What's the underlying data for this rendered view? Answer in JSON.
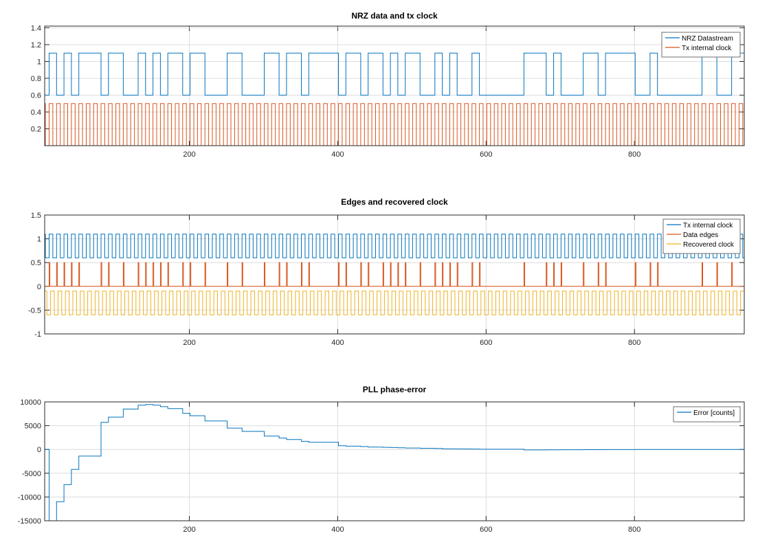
{
  "colors": {
    "blue": "#0072BD",
    "orange": "#D95319",
    "yellow": "#EDB120",
    "grid": "#dcdcdc",
    "axis": "#262626"
  },
  "chart_data": [
    {
      "type": "line",
      "title": "NRZ data and tx clock",
      "xlim": [
        5,
        948
      ],
      "ylim": [
        0,
        1.42
      ],
      "grid": true,
      "legend_placement": "top-right",
      "xticks": [
        200,
        400,
        600,
        800
      ],
      "yticks": [
        0.2,
        0.4,
        0.6,
        0.8,
        1,
        1.2,
        1.4
      ],
      "series": [
        {
          "name": "NRZ Datastream",
          "kind": "nrz",
          "color": "#0072BD",
          "bit_period": 10,
          "low": 0.6,
          "high": 1.1,
          "bits": [
            0,
            1,
            0,
            1,
            0,
            1,
            1,
            1,
            0,
            1,
            1,
            0,
            0,
            1,
            0,
            1,
            0,
            1,
            1,
            0,
            1,
            1,
            0,
            0,
            0,
            1,
            1,
            0,
            0,
            0,
            1,
            1,
            0,
            1,
            1,
            0,
            1,
            1,
            1,
            1,
            0,
            1,
            1,
            0,
            1,
            1,
            0,
            1,
            0,
            1,
            1,
            0,
            0,
            1,
            0,
            1,
            0,
            0,
            1,
            0,
            0,
            0,
            0,
            0,
            0,
            1,
            1,
            1,
            0,
            1,
            0,
            0,
            0,
            1,
            1,
            0,
            1,
            1,
            1,
            1,
            0,
            0,
            1,
            0,
            0,
            0,
            0,
            0,
            0,
            1,
            1,
            0,
            0,
            1,
            1
          ]
        },
        {
          "name": "Tx internal clock",
          "kind": "clock",
          "color": "#D95319",
          "period": 10,
          "low": 0,
          "high": 0.5
        }
      ]
    },
    {
      "type": "line",
      "title": "Edges and recovered clock",
      "xlim": [
        5,
        948
      ],
      "ylim": [
        -1,
        1.5
      ],
      "grid": true,
      "legend_placement": "top-right",
      "xticks": [
        200,
        400,
        600,
        800
      ],
      "yticks": [
        -1,
        -0.5,
        0,
        0.5,
        1,
        1.5
      ],
      "series": [
        {
          "name": "Tx internal clock",
          "kind": "clock",
          "color": "#0072BD",
          "period": 10,
          "low": 0.6,
          "high": 1.1
        },
        {
          "name": "Data edges",
          "kind": "edges",
          "color": "#D95319",
          "low": 0,
          "high": 0.5
        },
        {
          "name": "Recovered clock",
          "kind": "clock",
          "color": "#EDB120",
          "period": 10,
          "low": -0.6,
          "high": -0.1
        }
      ]
    },
    {
      "type": "line",
      "title": "PLL phase-error",
      "xlim": [
        5,
        948
      ],
      "ylim": [
        -15000,
        10000
      ],
      "grid": true,
      "legend_placement": "top-right",
      "xticks": [
        200,
        400,
        600,
        800
      ],
      "yticks": [
        -15000,
        -10000,
        -5000,
        0,
        5000,
        10000
      ],
      "series": [
        {
          "name": "Error [counts]",
          "kind": "steps",
          "color": "#0072BD",
          "x": [
            5,
            11,
            21,
            31,
            41,
            51,
            81,
            91,
            111,
            131,
            141,
            151,
            161,
            171,
            191,
            201,
            221,
            251,
            271,
            301,
            321,
            331,
            351,
            361,
            401,
            411,
            431,
            441,
            461,
            471,
            481,
            491,
            511,
            531,
            541,
            551,
            561,
            581,
            591,
            651,
            681,
            701,
            731,
            761,
            801,
            831,
            891,
            931,
            948
          ],
          "y": [
            0,
            -16000,
            -11000,
            -7400,
            -4200,
            -1400,
            5700,
            6800,
            8500,
            9300,
            9450,
            9300,
            9000,
            8600,
            7600,
            7100,
            6000,
            4500,
            3800,
            2800,
            2400,
            2100,
            1700,
            1500,
            800,
            700,
            600,
            500,
            450,
            400,
            350,
            300,
            250,
            200,
            150,
            120,
            100,
            80,
            50,
            -100,
            -80,
            -60,
            -40,
            -30,
            -20,
            -10,
            -5,
            0,
            0
          ]
        }
      ]
    }
  ]
}
